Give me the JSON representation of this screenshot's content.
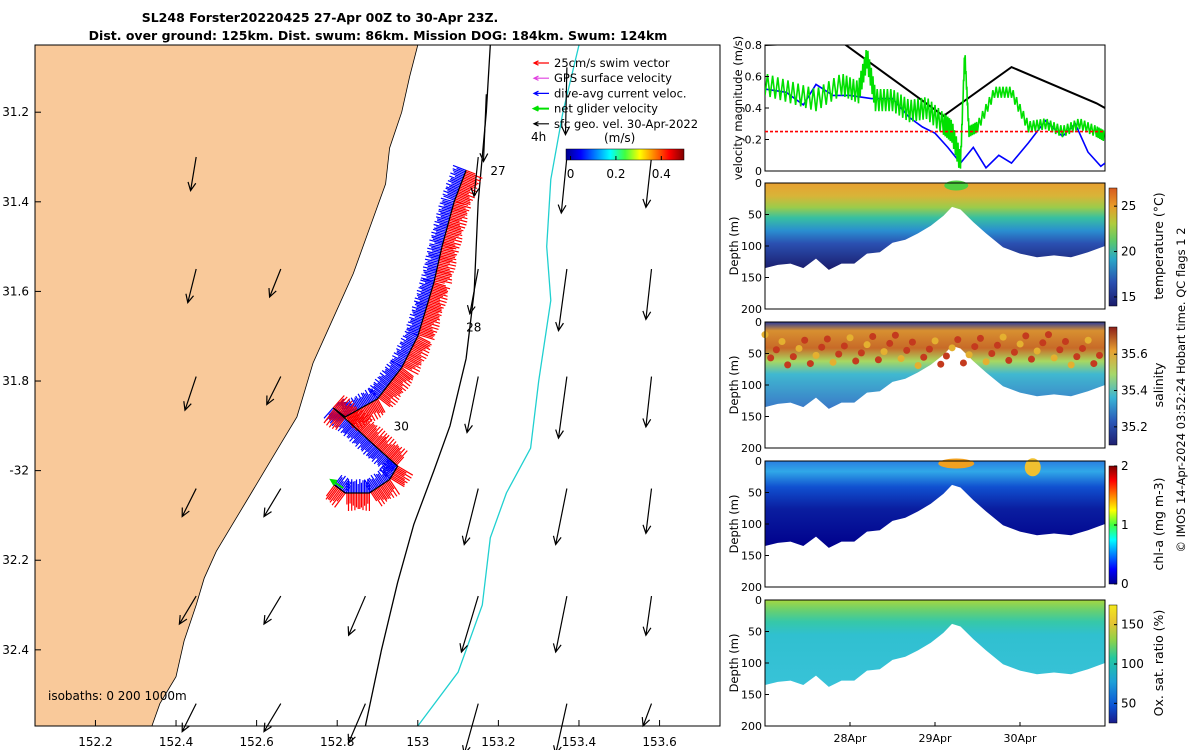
{
  "title_line1": "SL248 Forster20220425 27-Apr 00Z to 30-Apr 23Z.",
  "title_line2": "Dist. over ground: 125km. Dist. swum: 86km. Mission DOG: 184km. Swum: 124km",
  "footer_text": "© IMOS 14-Apr-2024 03:52:24 Hobart time. QC flags 1  2",
  "colors": {
    "land": "#f9c99a",
    "swim": "#ff0000",
    "gps": "#e040e0",
    "current": "#0000ff",
    "net": "#00e000",
    "geo": "#000000",
    "isobath200": "#000000",
    "isobath1000": "#20d0d0"
  },
  "chart_data": [
    {
      "type": "map",
      "name": "track-map",
      "xlim": [
        152.05,
        153.75
      ],
      "ylim": [
        -32.57,
        -31.05
      ],
      "xticks": [
        152.2,
        152.4,
        152.6,
        152.8,
        153,
        153.2,
        153.4,
        153.6
      ],
      "xtick_labels": [
        "152.2",
        "152.4",
        "152.6",
        "152.8",
        "153",
        "153.2",
        "153.4",
        "153.6"
      ],
      "yticks": [
        -31.2,
        -31.4,
        -31.6,
        -31.8,
        -32,
        -32.2,
        -32.4
      ],
      "ytick_labels": [
        "31.2",
        "31.4",
        "31.6",
        "31.8",
        "-32",
        "32.2",
        "32.4"
      ],
      "legend": [
        {
          "label": "25cm/s swim vector",
          "color": "#ff0000",
          "style": "arrow"
        },
        {
          "label": "GPS surface velocity",
          "color": "#e040e0",
          "style": "arrow"
        },
        {
          "label": "dive-avg current veloc.",
          "color": "#0000ff",
          "style": "arrow"
        },
        {
          "label": "net glider velocity",
          "color": "#00e000",
          "style": "arrow"
        },
        {
          "label": "sfc geo. vel. 30-Apr-2022",
          "color": "#000000",
          "style": "arrow"
        }
      ],
      "speed_bar": {
        "label": "(m/s)",
        "ticks": [
          0,
          0.2,
          0.4
        ],
        "tick_labels": [
          "0",
          "0.2",
          "0.4"
        ],
        "range": [
          -0.02,
          0.5
        ],
        "note": "4h"
      },
      "isobath_label": "isobaths: 0   200  1000m",
      "day_labels": [
        {
          "text": "27",
          "lon": 153.18,
          "lat": -31.34
        },
        {
          "text": "28",
          "lon": 153.12,
          "lat": -31.69
        },
        {
          "text": "30",
          "lon": 152.94,
          "lat": -31.91
        }
      ],
      "track": [
        [
          153.12,
          -31.33
        ],
        [
          153.09,
          -31.4
        ],
        [
          153.06,
          -31.5
        ],
        [
          153.04,
          -31.58
        ],
        [
          153.02,
          -31.64
        ],
        [
          153.0,
          -31.7
        ],
        [
          152.96,
          -31.77
        ],
        [
          152.9,
          -31.84
        ],
        [
          152.82,
          -31.88
        ],
        [
          152.79,
          -31.86
        ],
        [
          152.84,
          -31.9
        ],
        [
          152.9,
          -31.95
        ],
        [
          152.95,
          -31.99
        ],
        [
          152.93,
          -32.02
        ],
        [
          152.88,
          -32.05
        ],
        [
          152.82,
          -32.05
        ],
        [
          152.79,
          -32.03
        ]
      ],
      "coast": [
        [
          152.05,
          -31.05
        ],
        [
          153.0,
          -31.05
        ],
        [
          152.98,
          -31.12
        ],
        [
          152.96,
          -31.2
        ],
        [
          152.93,
          -31.28
        ],
        [
          152.92,
          -31.36
        ],
        [
          152.88,
          -31.46
        ],
        [
          152.84,
          -31.56
        ],
        [
          152.8,
          -31.64
        ],
        [
          152.77,
          -31.7
        ],
        [
          152.74,
          -31.76
        ],
        [
          152.72,
          -31.82
        ],
        [
          152.7,
          -31.88
        ],
        [
          152.66,
          -31.94
        ],
        [
          152.62,
          -32.0
        ],
        [
          152.58,
          -32.06
        ],
        [
          152.54,
          -32.12
        ],
        [
          152.5,
          -32.18
        ],
        [
          152.47,
          -32.24
        ],
        [
          152.45,
          -32.3
        ],
        [
          152.42,
          -32.38
        ],
        [
          152.4,
          -32.46
        ],
        [
          152.36,
          -32.52
        ],
        [
          152.34,
          -32.57
        ],
        [
          152.05,
          -32.57
        ]
      ],
      "isobath200": [
        [
          153.18,
          -31.05
        ],
        [
          153.17,
          -31.2
        ],
        [
          153.15,
          -31.4
        ],
        [
          153.14,
          -31.6
        ],
        [
          153.12,
          -31.75
        ],
        [
          153.08,
          -31.9
        ],
        [
          153.04,
          -32.0
        ],
        [
          152.99,
          -32.12
        ],
        [
          152.95,
          -32.25
        ],
        [
          152.91,
          -32.4
        ],
        [
          152.87,
          -32.57
        ]
      ],
      "isobath1000": [
        [
          153.4,
          -31.05
        ],
        [
          153.36,
          -31.2
        ],
        [
          153.33,
          -31.35
        ],
        [
          153.32,
          -31.5
        ],
        [
          153.33,
          -31.62
        ],
        [
          153.3,
          -31.8
        ],
        [
          153.28,
          -31.95
        ],
        [
          153.22,
          -32.05
        ],
        [
          153.18,
          -32.15
        ],
        [
          153.16,
          -32.3
        ],
        [
          153.1,
          -32.45
        ],
        [
          153.0,
          -32.57
        ]
      ],
      "geo_vectors": [
        {
          "lon": 153.17,
          "lat": -31.16,
          "u": -0.01,
          "v": -0.24
        },
        {
          "lon": 153.37,
          "lat": -31.1,
          "u": -0.005,
          "v": -0.24
        },
        {
          "lon": 152.45,
          "lat": -31.3,
          "u": -0.02,
          "v": -0.12
        },
        {
          "lon": 152.45,
          "lat": -31.55,
          "u": -0.03,
          "v": -0.12
        },
        {
          "lon": 152.45,
          "lat": -31.79,
          "u": -0.04,
          "v": -0.12
        },
        {
          "lon": 152.45,
          "lat": -32.04,
          "u": -0.05,
          "v": -0.1
        },
        {
          "lon": 152.45,
          "lat": -32.28,
          "u": -0.06,
          "v": -0.1
        },
        {
          "lon": 152.45,
          "lat": -32.52,
          "u": -0.05,
          "v": -0.1
        },
        {
          "lon": 152.66,
          "lat": -31.55,
          "u": -0.04,
          "v": -0.1
        },
        {
          "lon": 152.66,
          "lat": -31.79,
          "u": -0.05,
          "v": -0.1
        },
        {
          "lon": 152.66,
          "lat": -32.04,
          "u": -0.06,
          "v": -0.1
        },
        {
          "lon": 152.66,
          "lat": -32.28,
          "u": -0.06,
          "v": -0.1
        },
        {
          "lon": 152.66,
          "lat": -32.52,
          "u": -0.06,
          "v": -0.1
        },
        {
          "lon": 152.87,
          "lat": -32.28,
          "u": -0.06,
          "v": -0.14
        },
        {
          "lon": 152.87,
          "lat": -32.52,
          "u": -0.06,
          "v": -0.14
        },
        {
          "lon": 153.15,
          "lat": -31.3,
          "u": -0.015,
          "v": -0.14
        },
        {
          "lon": 153.15,
          "lat": -31.55,
          "u": -0.03,
          "v": -0.16
        },
        {
          "lon": 153.15,
          "lat": -31.79,
          "u": -0.04,
          "v": -0.2
        },
        {
          "lon": 153.15,
          "lat": -32.04,
          "u": -0.05,
          "v": -0.2
        },
        {
          "lon": 153.15,
          "lat": -32.28,
          "u": -0.06,
          "v": -0.2
        },
        {
          "lon": 153.15,
          "lat": -32.52,
          "u": -0.05,
          "v": -0.18
        },
        {
          "lon": 153.37,
          "lat": -31.3,
          "u": -0.02,
          "v": -0.2
        },
        {
          "lon": 153.37,
          "lat": -31.55,
          "u": -0.03,
          "v": -0.22
        },
        {
          "lon": 153.37,
          "lat": -31.79,
          "u": -0.03,
          "v": -0.22
        },
        {
          "lon": 153.37,
          "lat": -32.04,
          "u": -0.04,
          "v": -0.2
        },
        {
          "lon": 153.37,
          "lat": -32.28,
          "u": -0.04,
          "v": -0.2
        },
        {
          "lon": 153.37,
          "lat": -32.52,
          "u": -0.04,
          "v": -0.18
        },
        {
          "lon": 153.58,
          "lat": -31.3,
          "u": -0.02,
          "v": -0.18
        },
        {
          "lon": 153.58,
          "lat": -31.55,
          "u": -0.02,
          "v": -0.18
        },
        {
          "lon": 153.58,
          "lat": -31.79,
          "u": -0.02,
          "v": -0.18
        },
        {
          "lon": 153.58,
          "lat": -32.04,
          "u": -0.02,
          "v": -0.16
        },
        {
          "lon": 153.58,
          "lat": -32.28,
          "u": -0.02,
          "v": -0.14
        },
        {
          "lon": 153.58,
          "lat": -32.52,
          "u": -0.03,
          "v": -0.08
        }
      ]
    },
    {
      "type": "line",
      "name": "velocity-panel",
      "ylabel": "velocity magnitude (m/s)",
      "ylim": [
        0,
        0.8
      ],
      "yticks": [
        0,
        0.2,
        0.4,
        0.6,
        0.8
      ],
      "ytick_labels": [
        "0",
        "0.2",
        "0.4",
        "0.6",
        "0.8"
      ],
      "xlim": [
        0,
        4
      ],
      "series": [
        {
          "name": "sfc geo. vel.",
          "color": "#000000",
          "x": [
            0,
            0.9,
            2.1,
            2.9,
            3.9,
            4.0
          ],
          "y": [
            0.8,
            0.82,
            0.35,
            0.66,
            0.43,
            0.4
          ]
        },
        {
          "name": "dive-avg current",
          "color": "#0000ff",
          "x": [
            0,
            0.25,
            0.45,
            0.6,
            0.8,
            1.0,
            1.25,
            1.5,
            1.7,
            1.85,
            2.0,
            2.15,
            2.3,
            2.45,
            2.6,
            2.75,
            2.9,
            3.1,
            3.3,
            3.5,
            3.65,
            3.8,
            3.95,
            4.0
          ],
          "y": [
            0.52,
            0.5,
            0.42,
            0.55,
            0.48,
            0.48,
            0.46,
            0.46,
            0.34,
            0.28,
            0.24,
            0.15,
            0.05,
            0.15,
            0.02,
            0.1,
            0.05,
            0.18,
            0.32,
            0.22,
            0.3,
            0.12,
            0.03,
            0.05
          ]
        },
        {
          "name": "net glider velocity",
          "color": "#00e000",
          "x": [
            0,
            0.3,
            0.6,
            0.9,
            1.1,
            1.2,
            1.3,
            1.5,
            1.7,
            1.9,
            2.1,
            2.2,
            2.3,
            2.35,
            2.4,
            2.5,
            2.7,
            2.9,
            3.1,
            3.3,
            3.5,
            3.7,
            3.9,
            4.0
          ],
          "y": [
            0.55,
            0.5,
            0.45,
            0.55,
            0.5,
            0.72,
            0.45,
            0.45,
            0.38,
            0.4,
            0.3,
            0.25,
            0.05,
            0.75,
            0.25,
            0.28,
            0.5,
            0.5,
            0.28,
            0.3,
            0.25,
            0.3,
            0.25,
            0.22
          ]
        },
        {
          "name": "swim speed",
          "color": "#ff0000",
          "x": [
            0,
            4
          ],
          "y": [
            0.25,
            0.25
          ]
        }
      ]
    },
    {
      "type": "heatmap",
      "name": "temperature-panel",
      "ylabel": "Depth (m)",
      "yticks": [
        0,
        50,
        100,
        150,
        200
      ],
      "ytick_labels": [
        "0",
        "50",
        "100",
        "150",
        "200"
      ],
      "colorbar_label": "temperature (°C)",
      "colorbar_range": [
        14,
        27
      ],
      "colorbar_ticks": [
        15,
        20,
        25
      ],
      "colorbar_tick_labels": [
        "15",
        "20",
        "25"
      ]
    },
    {
      "type": "heatmap",
      "name": "salinity-panel",
      "ylabel": "Depth (m)",
      "yticks": [
        0,
        50,
        100,
        150,
        200
      ],
      "ytick_labels": [
        "0",
        "50",
        "100",
        "150",
        "200"
      ],
      "colorbar_label": "salinity",
      "colorbar_range": [
        35.1,
        35.75
      ],
      "colorbar_ticks": [
        35.2,
        35.4,
        35.6
      ],
      "colorbar_tick_labels": [
        "35.2",
        "35.4",
        "35.6"
      ]
    },
    {
      "type": "heatmap",
      "name": "chla-panel",
      "ylabel": "Depth (m)",
      "yticks": [
        0,
        50,
        100,
        150,
        200
      ],
      "ytick_labels": [
        "0",
        "50",
        "100",
        "150",
        "200"
      ],
      "colorbar_label": "chl-a (mg m-3)",
      "colorbar_range": [
        0,
        2
      ],
      "colorbar_ticks": [
        0,
        1,
        2
      ],
      "colorbar_tick_labels": [
        "0",
        "1",
        "2"
      ]
    },
    {
      "type": "heatmap",
      "name": "oxygen-panel",
      "ylabel": "Depth (m)",
      "yticks": [
        0,
        50,
        100,
        150,
        200
      ],
      "ytick_labels": [
        "0",
        "50",
        "100",
        "150",
        "200"
      ],
      "colorbar_label": "Ox. sat. ratio (%)",
      "colorbar_range": [
        25,
        175
      ],
      "colorbar_ticks": [
        50,
        100,
        150
      ],
      "colorbar_tick_labels": [
        "50",
        "100",
        "150"
      ],
      "xticks": [
        1,
        2,
        3
      ],
      "xtick_labels": [
        "28Apr",
        "29Apr",
        "30Apr"
      ]
    }
  ]
}
